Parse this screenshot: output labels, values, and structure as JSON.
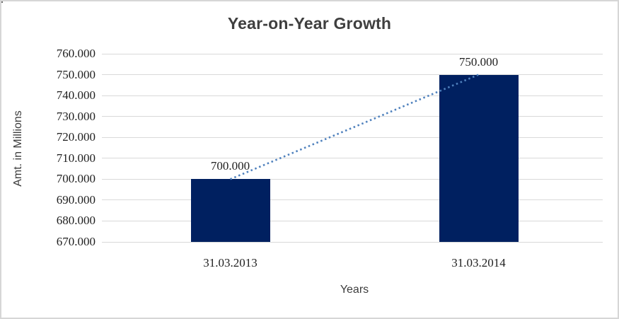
{
  "chart_data": {
    "type": "bar",
    "title": "Year-on-Year Growth",
    "xlabel": "Years",
    "ylabel": "Amt. in Millions",
    "categories": [
      "31.03.2013",
      "31.03.2014"
    ],
    "series": [
      {
        "values": [
          700000,
          750000
        ],
        "value_labels": [
          "700.000",
          "750.000"
        ]
      }
    ],
    "trendline": {
      "style": "dotted",
      "connects": "bar-tops"
    },
    "y_axis": {
      "min": 670000,
      "max": 760000,
      "step": 10000,
      "tick_labels": [
        "760.000",
        "750.000",
        "740.000",
        "730.000",
        "720.000",
        "710.000",
        "700.000",
        "690.000",
        "680.000",
        "670.000"
      ]
    },
    "grid": true,
    "legend": false,
    "colors": {
      "bar": "#002060",
      "trendline": "#4f81bd",
      "gridline": "#d9d9d9",
      "title_text": "#3f3f3f",
      "axis_title_text": "#3d3d3d",
      "tick_text": "#1f1f1f",
      "frame_border": "#d6d6d6",
      "background": "#ffffff"
    }
  }
}
